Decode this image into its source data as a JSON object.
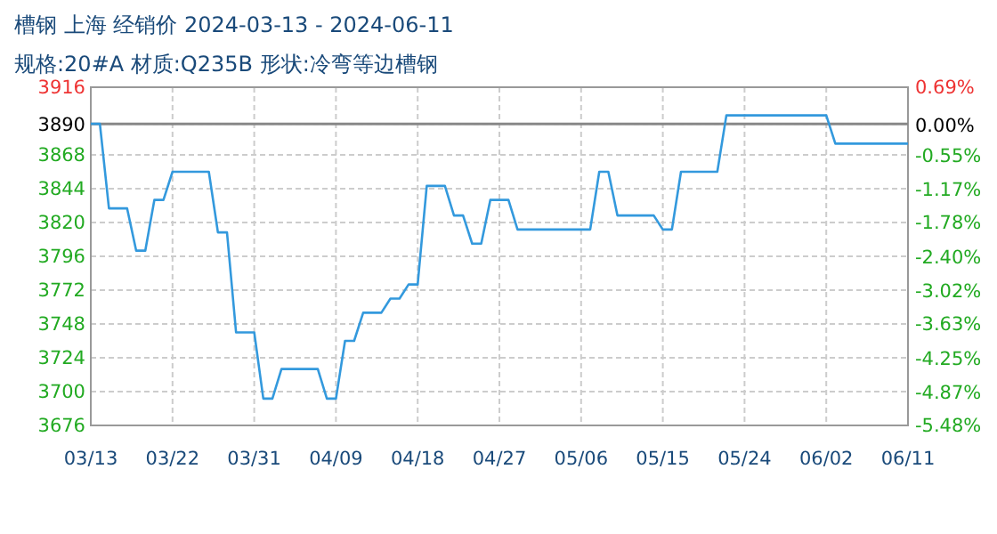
{
  "chart_data": {
    "type": "line",
    "title": "槽钢 上海 经销价 2024-03-13 - 2024-06-11",
    "subtitle": "规格:20#A 材质:Q235B 形状:冷弯等边槽钢",
    "x": [
      "2024-03-13",
      "2024-03-14",
      "2024-03-15",
      "2024-03-17",
      "2024-03-18",
      "2024-03-19",
      "2024-03-20",
      "2024-03-21",
      "2024-03-22",
      "2024-03-26",
      "2024-03-27",
      "2024-03-28",
      "2024-03-29",
      "2024-03-31",
      "2024-04-01",
      "2024-04-02",
      "2024-04-03",
      "2024-04-07",
      "2024-04-08",
      "2024-04-09",
      "2024-04-10",
      "2024-04-11",
      "2024-04-12",
      "2024-04-14",
      "2024-04-15",
      "2024-04-16",
      "2024-04-17",
      "2024-04-18",
      "2024-04-19",
      "2024-04-21",
      "2024-04-22",
      "2024-04-23",
      "2024-04-24",
      "2024-04-25",
      "2024-04-26",
      "2024-04-28",
      "2024-04-29",
      "2024-05-07",
      "2024-05-08",
      "2024-05-09",
      "2024-05-10",
      "2024-05-14",
      "2024-05-15",
      "2024-05-16",
      "2024-05-17",
      "2024-05-21",
      "2024-05-22",
      "2024-06-02",
      "2024-06-03",
      "2024-06-11"
    ],
    "series": [
      {
        "color": "#3399dd",
        "values": [
          3890,
          3890,
          3830,
          3830,
          3800,
          3800,
          3836,
          3836,
          3856,
          3856,
          3813,
          3813,
          3742,
          3742,
          3695,
          3695,
          3716,
          3716,
          3695,
          3695,
          3736,
          3736,
          3756,
          3756,
          3766,
          3766,
          3776,
          3776,
          3846,
          3846,
          3825,
          3825,
          3805,
          3805,
          3836,
          3836,
          3815,
          3815,
          3856,
          3856,
          3825,
          3825,
          3815,
          3815,
          3856,
          3856,
          3896,
          3896,
          3876,
          3876
        ]
      }
    ],
    "xlim": [
      "2024-03-13",
      "2024-06-11"
    ],
    "xticks": [
      {
        "value": "2024-03-13",
        "label": "03/13"
      },
      {
        "value": "2024-03-22",
        "label": "03/22"
      },
      {
        "value": "2024-03-31",
        "label": "03/31"
      },
      {
        "value": "2024-04-09",
        "label": "04/09"
      },
      {
        "value": "2024-04-18",
        "label": "04/18"
      },
      {
        "value": "2024-04-27",
        "label": "04/27"
      },
      {
        "value": "2024-05-06",
        "label": "05/06"
      },
      {
        "value": "2024-05-15",
        "label": "05/15"
      },
      {
        "value": "2024-05-24",
        "label": "05/24"
      },
      {
        "value": "2024-06-02",
        "label": "06/02"
      },
      {
        "value": "2024-06-11",
        "label": "06/11"
      }
    ],
    "ylim": [
      3676,
      3916
    ],
    "yticks": [
      3676,
      3700,
      3724,
      3748,
      3772,
      3796,
      3820,
      3844,
      3868,
      3890,
      3916
    ],
    "y2lim": [
      -5.48,
      0.69
    ],
    "y2ticks": [
      {
        "value": -5.48,
        "label": "-5.48%"
      },
      {
        "value": -4.87,
        "label": "-4.87%"
      },
      {
        "value": -4.25,
        "label": "-4.25%"
      },
      {
        "value": -3.63,
        "label": "-3.63%"
      },
      {
        "value": -3.02,
        "label": "-3.02%"
      },
      {
        "value": -2.4,
        "label": "-2.40%"
      },
      {
        "value": -1.78,
        "label": "-1.78%"
      },
      {
        "value": -1.17,
        "label": "-1.17%"
      },
      {
        "value": -0.55,
        "label": "-0.55%"
      },
      {
        "value": 0,
        "label": "0.00%"
      },
      {
        "value": 0.69,
        "label": "0.69%"
      }
    ],
    "ref_lines": [
      {
        "axis": "y",
        "value": 3890,
        "color": "#888888"
      }
    ],
    "grid": true,
    "line_style": "solid",
    "marker": "none"
  }
}
